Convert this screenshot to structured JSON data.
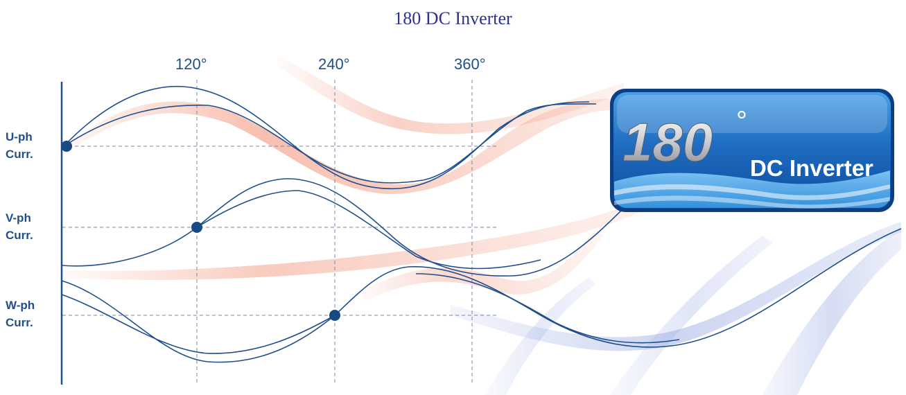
{
  "title": "180 DC Inverter",
  "degree_ticks": [
    "120°",
    "240°",
    "360°"
  ],
  "phases": [
    {
      "line1": "U-ph",
      "line2": "Curr."
    },
    {
      "line1": "V-ph",
      "line2": "Curr."
    },
    {
      "line1": "W-ph",
      "line2": "Curr."
    }
  ],
  "badge": {
    "number": "180",
    "degree": "°",
    "text": "DC Inverter"
  },
  "colors": {
    "title": "#2e3192",
    "curve": "#1f4e8c",
    "dashes": "#6f86a8",
    "ribbon_warm": "#f08a6c",
    "ribbon_cool": "#8fa2e0",
    "badge_top": "#2f7fd0",
    "badge_bottom": "#0d4d9e"
  }
}
